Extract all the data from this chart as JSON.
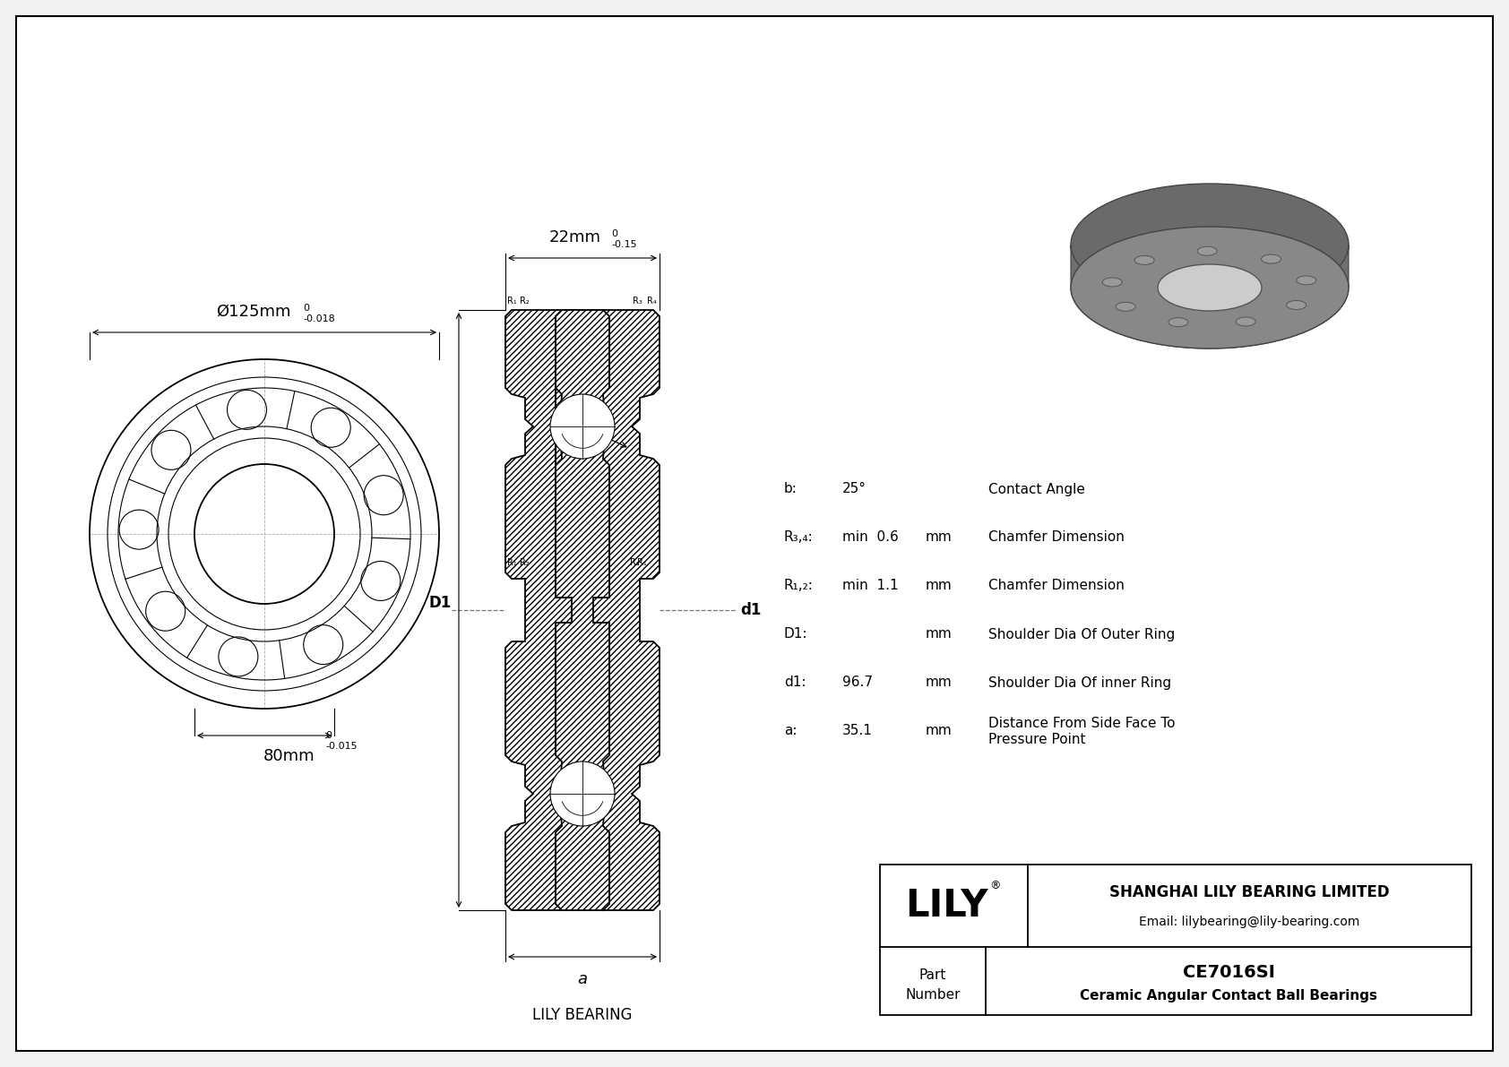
{
  "bg_color": "#f2f2f2",
  "line_color": "#000000",
  "title_company": "SHANGHAI LILY BEARING LIMITED",
  "title_email": "Email: lilybearing@lily-bearing.com",
  "part_number": "CE7016SI",
  "part_desc": "Ceramic Angular Contact Ball Bearings",
  "lily_label": "LILY BEARING",
  "brand": "LILY",
  "dim_outer": "Ø125mm",
  "dim_outer_tol_upper": "0",
  "dim_outer_tol_lower": "-0.018",
  "dim_inner": "80mm",
  "dim_inner_tol_upper": "0",
  "dim_inner_tol_lower": "-0.015",
  "dim_width": "22mm",
  "dim_width_tol_upper": "0",
  "dim_width_tol_lower": "-0.15",
  "params": [
    {
      "label": "b:",
      "value": "25°",
      "unit": "",
      "desc": "Contact Angle"
    },
    {
      "label": "R₃,₄:",
      "value": "min  0.6",
      "unit": "mm",
      "desc": "Chamfer Dimension"
    },
    {
      "label": "R₁,₂:",
      "value": "min  1.1",
      "unit": "mm",
      "desc": "Chamfer Dimension"
    },
    {
      "label": "D1:",
      "value": "",
      "unit": "mm",
      "desc": "Shoulder Dia Of Outer Ring"
    },
    {
      "label": "d1:",
      "value": "96.7",
      "unit": "mm",
      "desc": "Shoulder Dia Of inner Ring"
    },
    {
      "label": "a:",
      "value": "35.1",
      "unit": "mm",
      "desc": "Distance From Side Face To\nPressure Point"
    }
  ]
}
